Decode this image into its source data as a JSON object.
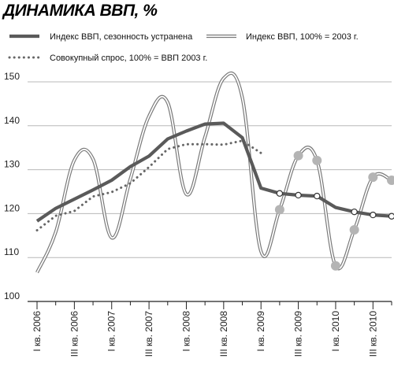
{
  "chart_data": {
    "type": "line",
    "title": "ДИНАМИКА ВВП, %",
    "xlabel": "",
    "ylabel": "",
    "ylim": [
      100,
      150
    ],
    "yticks": [
      100,
      110,
      120,
      130,
      140,
      150
    ],
    "grid": "horizontal",
    "legend": "top",
    "x": [
      "I кв. 2006",
      "II кв. 2006",
      "III кв. 2006",
      "IV кв. 2006",
      "I кв. 2007",
      "II кв. 2007",
      "III кв. 2007",
      "IV кв. 2007",
      "I кв. 2008",
      "II кв. 2008",
      "III кв. 2008",
      "IV кв. 2008",
      "I кв. 2009",
      "II кв. 2009",
      "III кв. 2009",
      "IV кв. 2009",
      "I кв. 2010",
      "II кв. 2010",
      "III кв. 2010",
      "IV кв. 2010"
    ],
    "xtick_labels": [
      "I кв. 2006",
      "III кв. 2006",
      "I кв. 2007",
      "III кв. 2007",
      "I кв. 2008",
      "III кв. 2008",
      "I кв. 2009",
      "III кв. 2009",
      "I кв. 2010",
      "III кв. 2010"
    ],
    "series": [
      {
        "name": "Индекс ВВП, сезонность устранена",
        "style": "thick-solid",
        "color": "#5a5a5a",
        "values": [
          118.3,
          121.2,
          123.3,
          125.4,
          127.6,
          130.7,
          133.1,
          137.0,
          138.8,
          140.4,
          140.6,
          137.3,
          125.8,
          124.6,
          124.2,
          124.0,
          121.4,
          120.4,
          119.7,
          119.4
        ],
        "marker_values": [
          null,
          null,
          null,
          null,
          null,
          null,
          null,
          null,
          null,
          null,
          null,
          null,
          null,
          124.6,
          124.2,
          124.0,
          null,
          120.4,
          119.7,
          119.4
        ]
      },
      {
        "name": "Индекс ВВП, 100% = 2003 г.",
        "style": "double-line",
        "color": "#777777",
        "values": [
          106.6,
          115.8,
          132.2,
          132.4,
          114.5,
          127.9,
          142.2,
          145.3,
          124.4,
          137.5,
          150.8,
          146.4,
          111.4,
          120.9,
          133.2,
          132.1,
          108.1,
          116.3,
          128.3,
          127.6
        ],
        "marker_values": [
          null,
          null,
          null,
          null,
          null,
          null,
          null,
          null,
          null,
          null,
          null,
          null,
          null,
          120.9,
          133.2,
          132.1,
          108.1,
          116.3,
          128.3,
          127.6
        ]
      },
      {
        "name": "Совокупный спрос, 100% = ВВП 2003 г.",
        "style": "dotted",
        "color": "#666666",
        "values": [
          116.2,
          119.5,
          120.6,
          123.9,
          124.9,
          126.9,
          130.6,
          134.7,
          135.8,
          135.8,
          135.7,
          136.6,
          133.8,
          null,
          null,
          null,
          null,
          null,
          null,
          null
        ]
      }
    ]
  }
}
